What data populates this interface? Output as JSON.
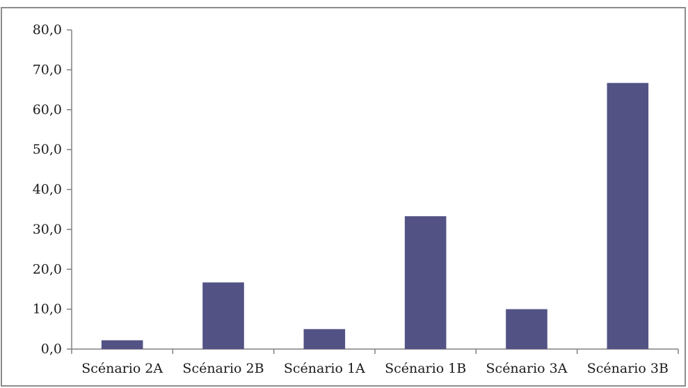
{
  "chart_data": {
    "type": "bar",
    "categories": [
      "Scénario 2A",
      "Scénario 2B",
      "Scénario 1A",
      "Scénario 1B",
      "Scénario 3A",
      "Scénario 3B"
    ],
    "values": [
      2.2,
      16.7,
      5.0,
      33.3,
      10.0,
      66.7
    ],
    "y_ticks": [
      "0,0",
      "10,0",
      "20,0",
      "30,0",
      "40,0",
      "50,0",
      "60,0",
      "70,0",
      "80,0"
    ],
    "ylim": [
      0,
      80
    ],
    "grid": false,
    "legend": "none",
    "bar_color": "#525285",
    "axis_color": "#808080",
    "frame_color": "#8c8c8c"
  }
}
